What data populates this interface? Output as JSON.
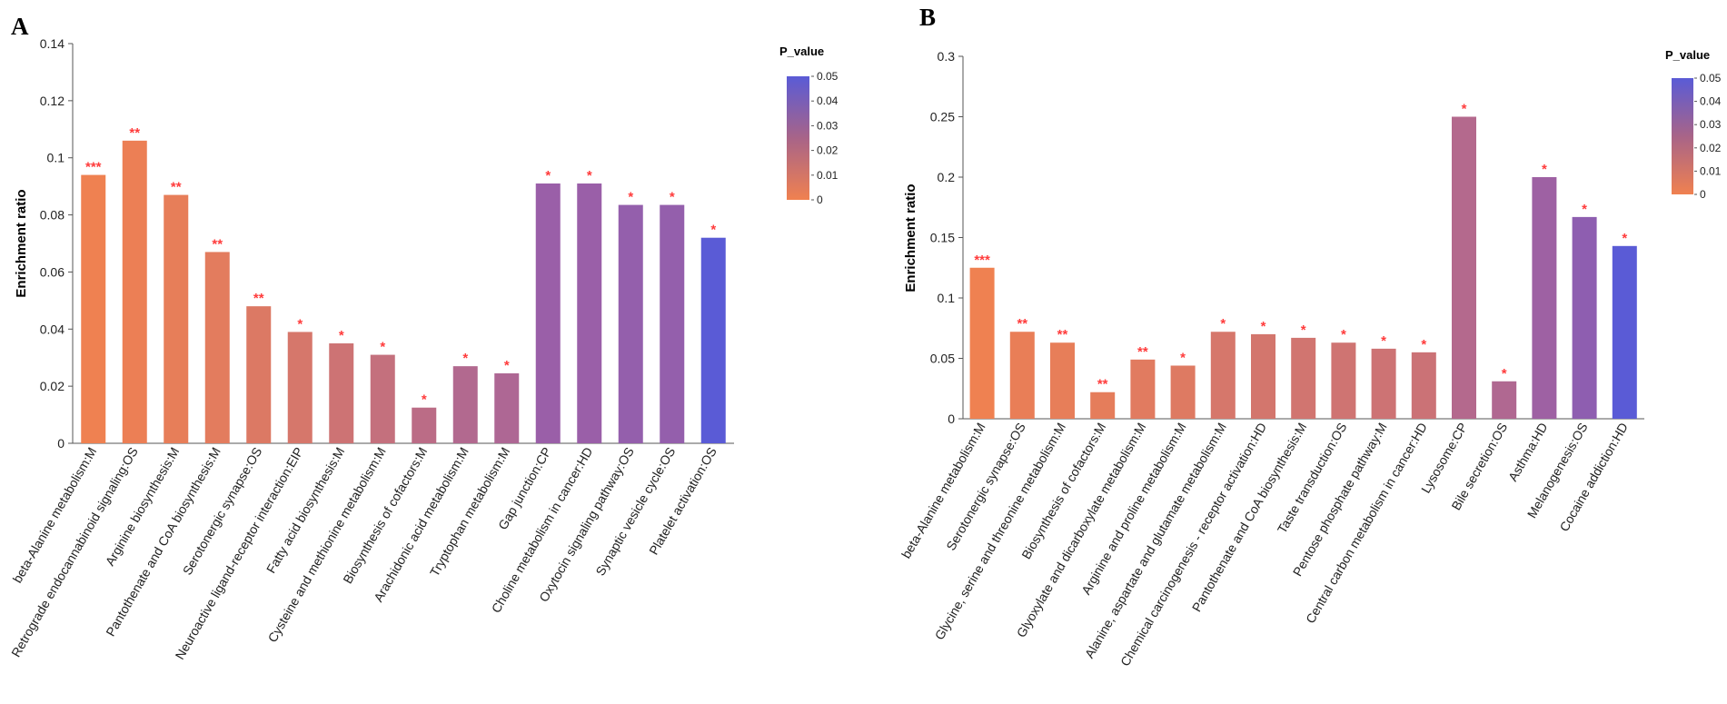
{
  "chart_data": [
    {
      "type": "bar",
      "panel": "A",
      "ylabel": "Enrichment ratio",
      "ylim": [
        0,
        0.14
      ],
      "yticks": [
        "0",
        "0.02",
        "0.04",
        "0.06",
        "0.08",
        "0.1",
        "0.12",
        "0.14"
      ],
      "ytick_values": [
        0,
        0.02,
        0.04,
        0.06,
        0.08,
        0.1,
        0.12,
        0.14
      ],
      "legend": {
        "title": "P_value",
        "ticks": [
          "0",
          "0.01",
          "0.02",
          "0.03",
          "0.04",
          "0.05"
        ],
        "tick_values": [
          0,
          0.01,
          0.02,
          0.03,
          0.04,
          0.05
        ]
      },
      "categories": [
        "beta-Alanine metabolism:M",
        "Retrograde endocannabinoid signaling:OS",
        "Arginine biosynthesis:M",
        "Pantothenate and CoA biosynthesis:M",
        "Serotonergic synapse:OS",
        "Neuroactive ligand-receptor interaction:EIP",
        "Fatty acid biosynthesis:M",
        "Cysteine and methionine metabolism:M",
        "Biosynthesis of cofactors:M",
        "Arachidonic acid metabolism:M",
        "Tryptophan metabolism:M",
        "Gap junction:CP",
        "Choline metabolism in cancer:HD",
        "Oxytocin signaling pathway:OS",
        "Synaptic vesicle cycle:OS",
        "Platelet activation:OS"
      ],
      "values": [
        0.094,
        0.106,
        0.087,
        0.067,
        0.048,
        0.039,
        0.035,
        0.031,
        0.0125,
        0.027,
        0.0245,
        0.091,
        0.091,
        0.0835,
        0.0835,
        0.072
      ],
      "p_values": [
        0.0003,
        0.002,
        0.004,
        0.006,
        0.009,
        0.012,
        0.016,
        0.02,
        0.024,
        0.028,
        0.03,
        0.039,
        0.039,
        0.04,
        0.04,
        0.05
      ],
      "significance": [
        "***",
        "**",
        "**",
        "**",
        "**",
        "*",
        "*",
        "*",
        "*",
        "*",
        "*",
        "*",
        "*",
        "*",
        "*",
        "*"
      ]
    },
    {
      "type": "bar",
      "panel": "B",
      "ylabel": "Enrichment ratio",
      "ylim": [
        0,
        0.3
      ],
      "yticks": [
        "0",
        "0.05",
        "0.1",
        "0.15",
        "0.2",
        "0.25",
        "0.3"
      ],
      "ytick_values": [
        0,
        0.05,
        0.1,
        0.15,
        0.2,
        0.25,
        0.3
      ],
      "legend": {
        "title": "P_value",
        "ticks": [
          "0",
          "0.01",
          "0.02",
          "0.03",
          "0.04",
          "0.05"
        ],
        "tick_values": [
          0,
          0.01,
          0.02,
          0.03,
          0.04,
          0.05
        ]
      },
      "categories": [
        "beta-Alanine metabolism:M",
        "Serotonergic synapse:OS",
        "Glycine, serine and threonine metabolism:M",
        "Biosynthesis of cofactors:M",
        "Glyoxylate and dicarboxylate metabolism:M",
        "Arginine and proline metabolism:M",
        "Alanine, aspartate and glutamate metabolism:M",
        "Chemical carcinogenesis - receptor activation:HD",
        "Pantothenate and CoA biosynthesis:M",
        "Taste transduction:OS",
        "Pentose phosphate pathway:M",
        "Central carbon metabolism in cancer:HD",
        "Lysosome:CP",
        "Bile secretion:OS",
        "Asthma:HD",
        "Melanogenesis:OS",
        "Cocaine addiction:HD"
      ],
      "values": [
        0.125,
        0.072,
        0.063,
        0.022,
        0.049,
        0.044,
        0.072,
        0.07,
        0.067,
        0.063,
        0.058,
        0.055,
        0.25,
        0.031,
        0.2,
        0.167,
        0.143
      ],
      "p_values": [
        0.0005,
        0.003,
        0.004,
        0.005,
        0.007,
        0.008,
        0.012,
        0.013,
        0.014,
        0.015,
        0.016,
        0.017,
        0.027,
        0.029,
        0.037,
        0.041,
        0.05
      ],
      "significance": [
        "***",
        "**",
        "**",
        "**",
        "**",
        "*",
        "*",
        "*",
        "*",
        "*",
        "*",
        "*",
        "*",
        "*",
        "*",
        "*",
        "*"
      ]
    }
  ],
  "colors": {
    "low": "#f08150",
    "mid": "#9a5fa8",
    "high": "#5a5bd6",
    "significance": "#ff3b3b",
    "axis": "#555555"
  }
}
